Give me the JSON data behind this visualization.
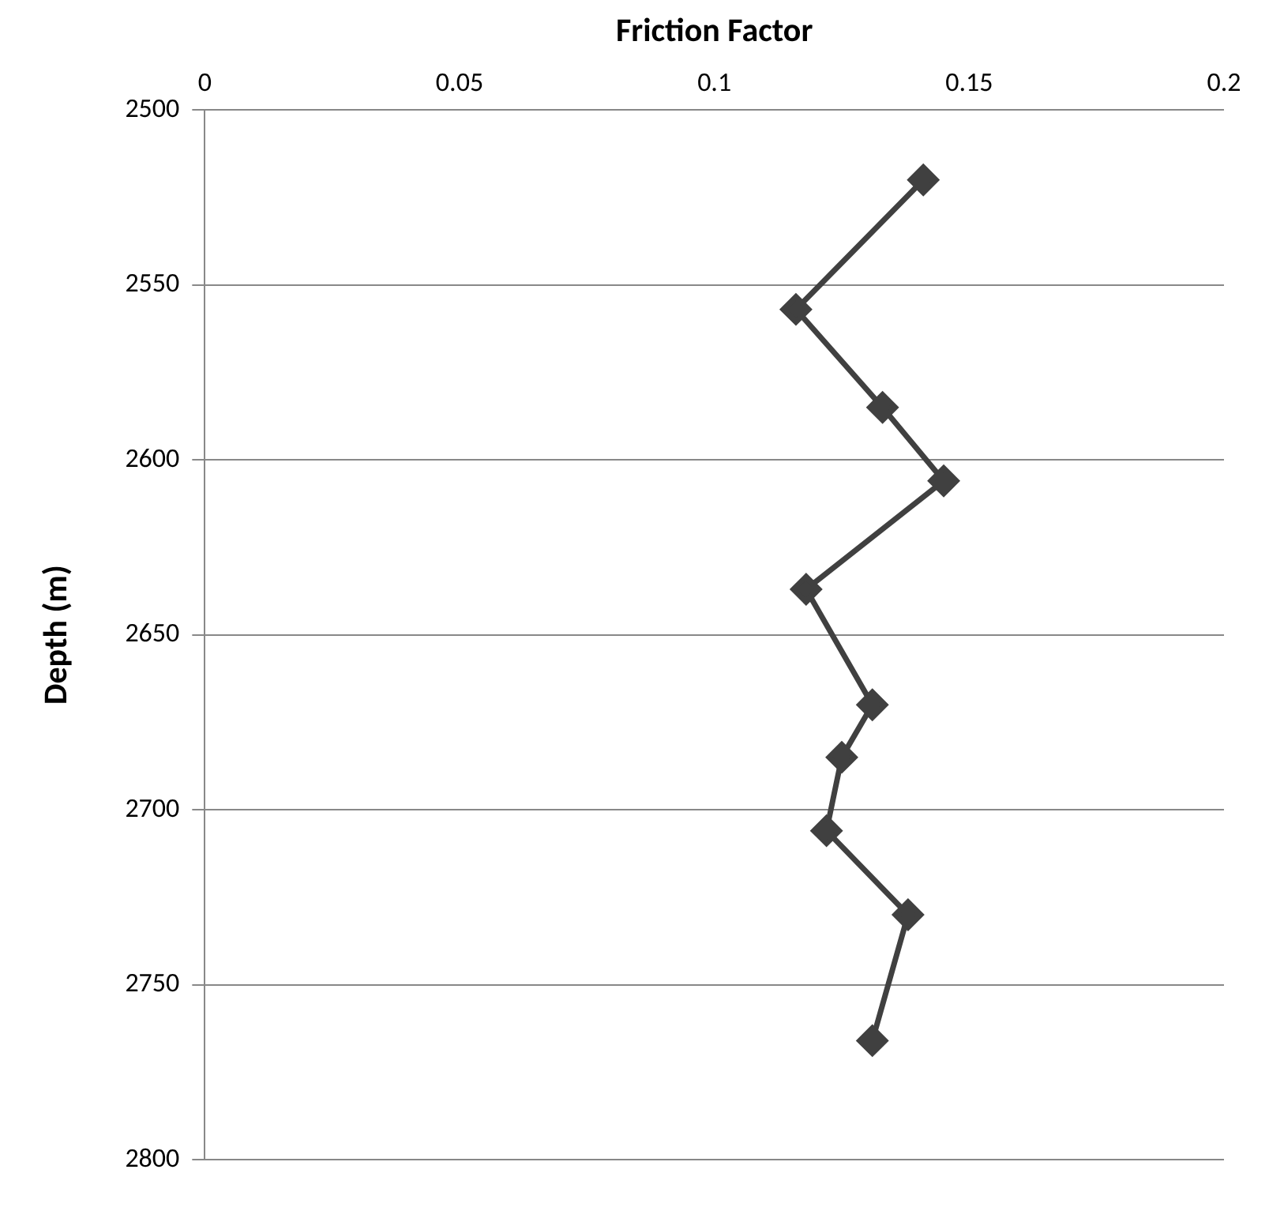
{
  "chart_data": {
    "type": "line",
    "xlabel": "Friction Factor",
    "ylabel": "Depth (m)",
    "x": [
      0.141,
      0.116,
      0.133,
      0.145,
      0.118,
      0.131,
      0.125,
      0.122,
      0.138,
      0.131
    ],
    "values": [
      2520,
      2557,
      2585,
      2606,
      2637,
      2670,
      2685,
      2706,
      2730,
      2766
    ],
    "color": "#404040",
    "xlim": [
      0,
      0.2
    ],
    "xticks": [
      0,
      0.05,
      0.1,
      0.15,
      0.2
    ],
    "ylim": [
      2800,
      2500
    ],
    "yticks": [
      2500,
      2550,
      2600,
      2650,
      2700,
      2750,
      2800
    ],
    "grid": "y",
    "marker": "diamond",
    "line_style": "solid",
    "legend": false
  }
}
